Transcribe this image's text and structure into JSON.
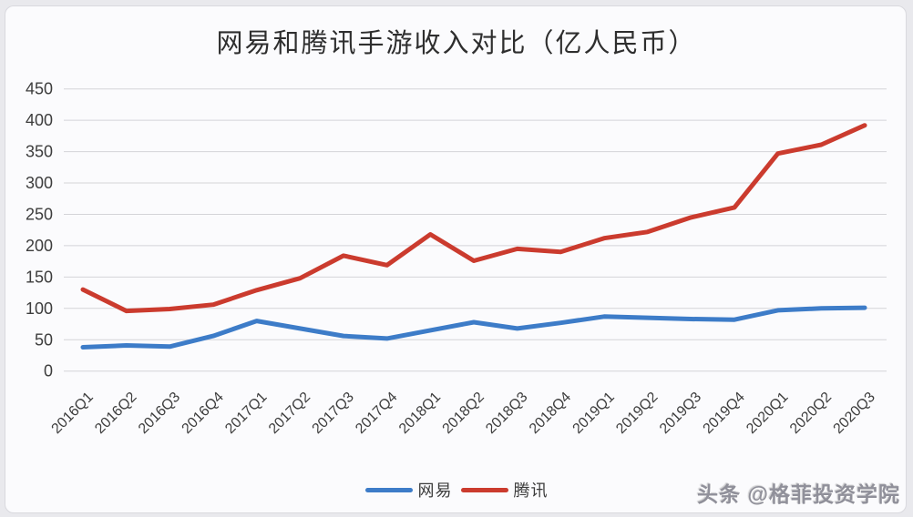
{
  "title": "网易和腾讯手游收入对比（亿人民币）",
  "watermark": "头条 @格菲投资学院",
  "colors": {
    "netease_blue": "#3d7cc8",
    "tencent_red": "#cb3b2e",
    "gridline": "#d4d4d8",
    "axis_text": "#3d3d3d",
    "card_background": "#fbfbfd",
    "page_background": "#e9e9ed"
  },
  "chart_data": {
    "type": "line",
    "title": "网易和腾讯手游收入对比（亿人民币）",
    "categories": [
      "2016Q1",
      "2016Q2",
      "2016Q3",
      "2016Q4",
      "2017Q1",
      "2017Q2",
      "2017Q3",
      "2017Q4",
      "2018Q1",
      "2018Q2",
      "2018Q3",
      "2018Q4",
      "2019Q1",
      "2019Q2",
      "2019Q3",
      "2019Q4",
      "2020Q1",
      "2020Q2",
      "2020Q3"
    ],
    "series": [
      {
        "key": "netease",
        "name": "网易",
        "color": "#3d7cc8",
        "values": [
          38,
          41,
          39,
          56,
          80,
          68,
          56,
          52,
          65,
          78,
          68,
          77,
          87,
          85,
          83,
          82,
          97,
          100,
          101
        ]
      },
      {
        "key": "tencent",
        "name": "腾讯",
        "color": "#cb3b2e",
        "values": [
          130,
          96,
          99,
          106,
          129,
          148,
          184,
          169,
          218,
          176,
          195,
          190,
          212,
          222,
          245,
          261,
          347,
          361,
          392
        ]
      }
    ],
    "xlabel": "",
    "ylabel": "",
    "ylim": [
      0,
      450
    ],
    "y_ticks": [
      0,
      50,
      100,
      150,
      200,
      250,
      300,
      350,
      400,
      450
    ],
    "x_label_rotation": -45,
    "grid": true,
    "legend_position": "bottom"
  }
}
